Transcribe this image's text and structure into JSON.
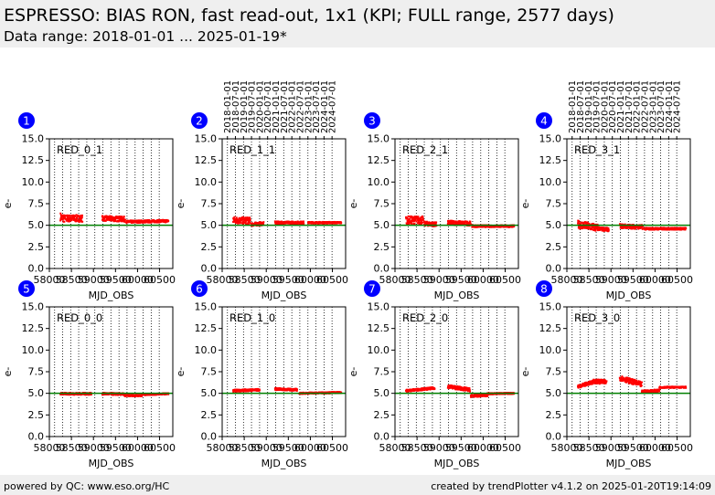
{
  "header": {
    "title": "ESPRESSO: BIAS RON, fast read-out, 1x1 (KPI; FULL range, 2577 days)",
    "subtitle": "Data range: 2018-01-01 ... 2025-01-19*"
  },
  "footer": {
    "left": "powered by QC: www.eso.org/HC",
    "right": "created by trendPlotter v4.1.2 on 2025-01-20T19:14:09"
  },
  "colors": {
    "data": "#ff0000",
    "reference_line": "#008000",
    "badge": "#0000ff",
    "background": "#efefef"
  },
  "chart_data": {
    "type": "scatter",
    "xlabel": "MJD_OBS",
    "ylabel": "e-",
    "xlim": [
      58000,
      60800
    ],
    "ylim": [
      0.0,
      15.0
    ],
    "x_ticks": [
      58000,
      58500,
      59000,
      59500,
      60000,
      60500
    ],
    "x_tick_labels": [
      "58000",
      "58500",
      "59000",
      "59500",
      "60000",
      "60500"
    ],
    "y_ticks": [
      "0.0",
      "2.5",
      "5.0",
      "7.5",
      "10.0",
      "12.5",
      "15.0"
    ],
    "date_ticks_mjd": [
      58119,
      58300,
      58484,
      58665,
      58849,
      59031,
      59215,
      59396,
      59580,
      59761,
      59945,
      60126,
      60310,
      60492
    ],
    "date_tick_labels": [
      "2018-01-01",
      "2018-07-01",
      "2019-01-01",
      "2019-07-01",
      "2020-01-01",
      "2020-07-01",
      "2021-01-01",
      "2021-07-01",
      "2022-01-01",
      "2022-07-01",
      "2023-01-01",
      "2023-07-01",
      "2024-01-01",
      "2024-07-01"
    ],
    "date_axis_on_panels": [
      1,
      3
    ],
    "reference_value": 5.0,
    "grid": "vertical dotted at date ticks",
    "panels": [
      {
        "id": "1",
        "label": "RED_0_1",
        "segments": [
          {
            "x": [
              58250,
              58360
            ],
            "y": [
              6.0,
              5.7
            ],
            "spread": 0.45
          },
          {
            "x": [
              58370,
              58750
            ],
            "y": [
              5.8,
              5.8
            ],
            "spread": 0.4
          },
          {
            "x": [
              59200,
              59720
            ],
            "y": [
              5.8,
              5.7
            ],
            "spread": 0.3
          },
          {
            "x": [
              59750,
              60700
            ],
            "y": [
              5.4,
              5.5
            ],
            "spread": 0.15
          }
        ]
      },
      {
        "id": "2",
        "label": "RED_1_1",
        "segments": [
          {
            "x": [
              58250,
              58640
            ],
            "y": [
              5.6,
              5.5
            ],
            "spread": 0.4
          },
          {
            "x": [
              58660,
              58940
            ],
            "y": [
              5.1,
              5.2
            ],
            "spread": 0.2
          },
          {
            "x": [
              59200,
              59850
            ],
            "y": [
              5.3,
              5.3
            ],
            "spread": 0.15
          },
          {
            "x": [
              59950,
              60700
            ],
            "y": [
              5.3,
              5.3
            ],
            "spread": 0.1
          }
        ]
      },
      {
        "id": "3",
        "label": "RED_2_1",
        "segments": [
          {
            "x": [
              58250,
              58640
            ],
            "y": [
              5.6,
              5.6
            ],
            "spread": 0.45
          },
          {
            "x": [
              58660,
              58940
            ],
            "y": [
              5.2,
              5.1
            ],
            "spread": 0.25
          },
          {
            "x": [
              59200,
              59720
            ],
            "y": [
              5.3,
              5.2
            ],
            "spread": 0.25
          },
          {
            "x": [
              59750,
              60700
            ],
            "y": [
              4.9,
              4.9
            ],
            "spread": 0.12
          }
        ]
      },
      {
        "id": "4",
        "label": "RED_3_1",
        "segments": [
          {
            "x": [
              58250,
              58700
            ],
            "y": [
              5.1,
              4.7
            ],
            "spread": 0.45
          },
          {
            "x": [
              58700,
              58950
            ],
            "y": [
              4.6,
              4.5
            ],
            "spread": 0.2
          },
          {
            "x": [
              59200,
              59720
            ],
            "y": [
              4.9,
              4.8
            ],
            "spread": 0.25
          },
          {
            "x": [
              59750,
              60700
            ],
            "y": [
              4.6,
              4.6
            ],
            "spread": 0.12
          }
        ]
      },
      {
        "id": "5",
        "label": "RED_0_0",
        "segments": [
          {
            "x": [
              58250,
              58950
            ],
            "y": [
              4.95,
              4.95
            ],
            "spread": 0.12
          },
          {
            "x": [
              59200,
              59700
            ],
            "y": [
              4.95,
              4.9
            ],
            "spread": 0.12
          },
          {
            "x": [
              59700,
              60100
            ],
            "y": [
              4.75,
              4.75
            ],
            "spread": 0.1
          },
          {
            "x": [
              60100,
              60700
            ],
            "y": [
              4.85,
              4.95
            ],
            "spread": 0.08
          }
        ]
      },
      {
        "id": "6",
        "label": "RED_1_0",
        "segments": [
          {
            "x": [
              58250,
              58850
            ],
            "y": [
              5.3,
              5.4
            ],
            "spread": 0.12
          },
          {
            "x": [
              59200,
              59700
            ],
            "y": [
              5.5,
              5.4
            ],
            "spread": 0.12
          },
          {
            "x": [
              59750,
              60700
            ],
            "y": [
              5.0,
              5.1
            ],
            "spread": 0.08
          }
        ]
      },
      {
        "id": "7",
        "label": "RED_2_0",
        "segments": [
          {
            "x": [
              58250,
              58900
            ],
            "y": [
              5.3,
              5.6
            ],
            "spread": 0.12
          },
          {
            "x": [
              59200,
              59700
            ],
            "y": [
              5.8,
              5.4
            ],
            "spread": 0.2
          },
          {
            "x": [
              59720,
              60100
            ],
            "y": [
              4.7,
              4.8
            ],
            "spread": 0.15
          },
          {
            "x": [
              60100,
              60700
            ],
            "y": [
              4.95,
              5.0
            ],
            "spread": 0.08
          }
        ]
      },
      {
        "id": "8",
        "label": "RED_3_0",
        "segments": [
          {
            "x": [
              58250,
              58600
            ],
            "y": [
              5.8,
              6.3
            ],
            "spread": 0.2
          },
          {
            "x": [
              58600,
              58900
            ],
            "y": [
              6.4,
              6.3
            ],
            "spread": 0.25
          },
          {
            "x": [
              59200,
              59700
            ],
            "y": [
              6.8,
              6.0
            ],
            "spread": 0.3
          },
          {
            "x": [
              59700,
              60100
            ],
            "y": [
              5.2,
              5.3
            ],
            "spread": 0.15
          },
          {
            "x": [
              60100,
              60700
            ],
            "y": [
              5.7,
              5.7
            ],
            "spread": 0.08
          }
        ]
      }
    ]
  }
}
